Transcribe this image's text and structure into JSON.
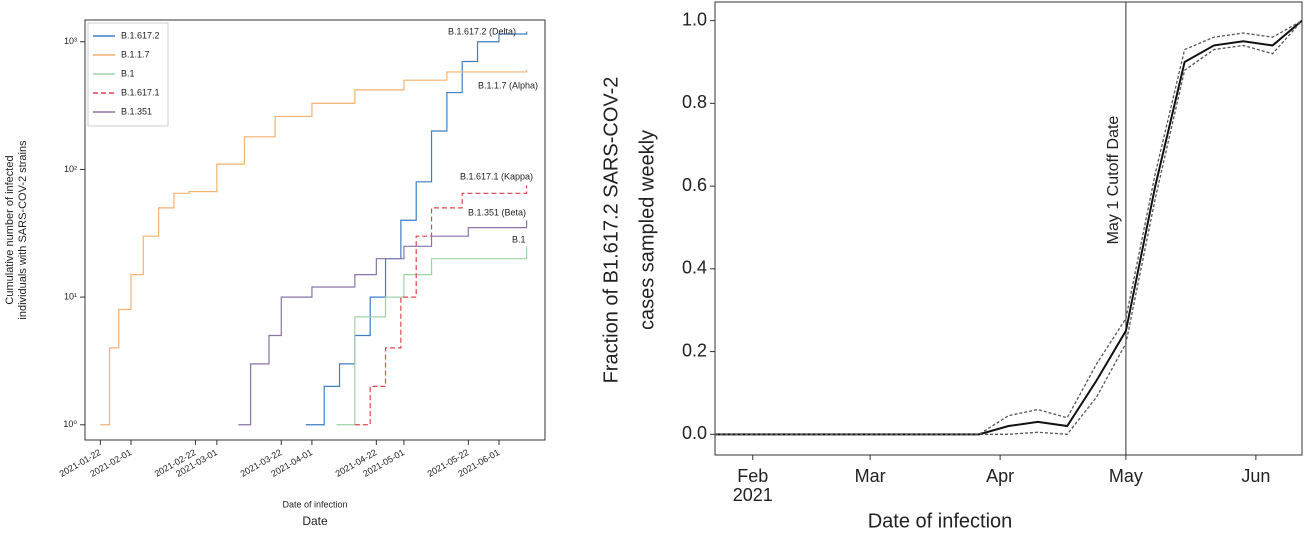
{
  "chart_data": [
    {
      "type": "line",
      "drawstyle": "steps-post",
      "yscale": "log",
      "grid": false,
      "legend": "upper left",
      "ylabel": [
        "Cumulative number of infected",
        "individuals with SARS-COV-2 strains"
      ],
      "xlabel": "Date of infection",
      "xlabel2": "Date",
      "xlim": [
        "2021-01-17",
        "2021-06-16"
      ],
      "ylim": [
        0.76,
        1480
      ],
      "yticks": [
        {
          "value": 1,
          "label": "10⁰"
        },
        {
          "value": 10,
          "label": "10¹"
        },
        {
          "value": 100,
          "label": "10²"
        },
        {
          "value": 1000,
          "label": "10³"
        }
      ],
      "xticks": [
        "2021-01-22",
        "2021-02-01",
        "2021-02-22",
        "2021-03-01",
        "2021-03-22",
        "2021-04-01",
        "2021-04-22",
        "2021-05-01",
        "2021-05-22",
        "2021-06-01"
      ],
      "series": [
        {
          "name": "B.1.617.2",
          "color": "#3b7fc4",
          "dash": false,
          "x": [
            "2021-03-30",
            "2021-04-05",
            "2021-04-10",
            "2021-04-15",
            "2021-04-20",
            "2021-04-25",
            "2021-04-30",
            "2021-05-05",
            "2021-05-10",
            "2021-05-15",
            "2021-05-20",
            "2021-05-25",
            "2021-06-01",
            "2021-06-10"
          ],
          "values": [
            1,
            2,
            3,
            5,
            10,
            20,
            40,
            80,
            200,
            400,
            700,
            1000,
            1150,
            1200
          ]
        },
        {
          "name": "B.1.1.7",
          "color": "#f2b272",
          "dash": false,
          "x": [
            "2021-01-22",
            "2021-01-25",
            "2021-01-28",
            "2021-02-01",
            "2021-02-05",
            "2021-02-10",
            "2021-02-15",
            "2021-02-20",
            "2021-03-01",
            "2021-03-10",
            "2021-03-20",
            "2021-04-01",
            "2021-04-15",
            "2021-05-01",
            "2021-05-15",
            "2021-06-10"
          ],
          "values": [
            1,
            4,
            8,
            15,
            30,
            50,
            65,
            67,
            110,
            180,
            260,
            330,
            420,
            500,
            580,
            600
          ]
        },
        {
          "name": "B.1",
          "color": "#9fd3a8",
          "dash": false,
          "x": [
            "2021-04-09",
            "2021-04-15",
            "2021-04-25",
            "2021-05-01",
            "2021-05-10",
            "2021-06-10"
          ],
          "values": [
            1,
            7,
            10,
            15,
            20,
            25
          ]
        },
        {
          "name": "B.1.617.1",
          "color": "#e0444a",
          "dash": true,
          "x": [
            "2021-04-15",
            "2021-04-20",
            "2021-04-25",
            "2021-04-30",
            "2021-05-05",
            "2021-05-10",
            "2021-05-20",
            "2021-06-10"
          ],
          "values": [
            1,
            2,
            4,
            10,
            30,
            50,
            65,
            75
          ]
        },
        {
          "name": "B.1.351",
          "color": "#8a73a8",
          "dash": false,
          "x": [
            "2021-03-08",
            "2021-03-12",
            "2021-03-18",
            "2021-03-22",
            "2021-04-01",
            "2021-04-15",
            "2021-04-22",
            "2021-05-01",
            "2021-05-10",
            "2021-05-22",
            "2021-06-10"
          ],
          "values": [
            1,
            3,
            5,
            10,
            12,
            15,
            20,
            25,
            30,
            35,
            40
          ]
        }
      ],
      "annotations": [
        "B.1.617.2 (Delta)",
        "B.1.1.7 (Alpha)",
        "B.1.617.1 (Kappa)",
        "B.1.351 (Beta)",
        "B.1"
      ]
    },
    {
      "type": "line",
      "grid": false,
      "ylabel": [
        "Fraction of B1.617.2 SARS-COV-2",
        "cases sampled weekly"
      ],
      "xlabel": "Date of infection",
      "xlim": [
        "2021-01-23",
        "2021-06-12"
      ],
      "ylim": [
        -0.05,
        1.045
      ],
      "yticks": [
        {
          "value": 0,
          "label": "0.0"
        },
        0.2,
        0.4,
        0.6,
        0.8,
        {
          "value": 1,
          "label": "1.0"
        }
      ],
      "xticks": [
        {
          "value": "2021-02-01",
          "label": "Feb\n2021"
        },
        {
          "value": "2021-03-01",
          "label": "Mar"
        },
        {
          "value": "2021-04-01",
          "label": "Apr"
        },
        {
          "value": "2021-05-01",
          "label": "May"
        },
        {
          "value": "2021-06-01",
          "label": "Jun"
        }
      ],
      "x": [
        "2021-01-23",
        "2021-01-30",
        "2021-02-06",
        "2021-02-13",
        "2021-02-20",
        "2021-02-27",
        "2021-03-06",
        "2021-03-13",
        "2021-03-20",
        "2021-03-27",
        "2021-04-03",
        "2021-04-10",
        "2021-04-17",
        "2021-04-24",
        "2021-05-01",
        "2021-05-08",
        "2021-05-15",
        "2021-05-22",
        "2021-05-29",
        "2021-06-05",
        "2021-06-12"
      ],
      "series": [
        {
          "color": "#111111",
          "dash": false,
          "values": [
            0,
            0,
            0,
            0,
            0,
            0,
            0,
            0,
            0,
            0,
            0.02,
            0.03,
            0.02,
            0.13,
            0.25,
            0.6,
            0.9,
            0.94,
            0.95,
            0.94,
            1.0
          ]
        },
        {
          "color": "#555555",
          "dash": true,
          "values": [
            0,
            0,
            0,
            0,
            0,
            0,
            0,
            0,
            0,
            0,
            0.045,
            0.06,
            0.04,
            0.17,
            0.28,
            0.63,
            0.93,
            0.96,
            0.97,
            0.96,
            1.0
          ]
        },
        {
          "color": "#555555",
          "dash": true,
          "values": [
            0,
            0,
            0,
            0,
            0,
            0,
            0,
            0,
            0,
            0,
            0,
            0.005,
            0,
            0.09,
            0.22,
            0.57,
            0.88,
            0.93,
            0.94,
            0.92,
            1.0
          ]
        }
      ],
      "vline": {
        "x": "2021-05-01",
        "label": "May 1 Cutoff Date"
      }
    }
  ]
}
